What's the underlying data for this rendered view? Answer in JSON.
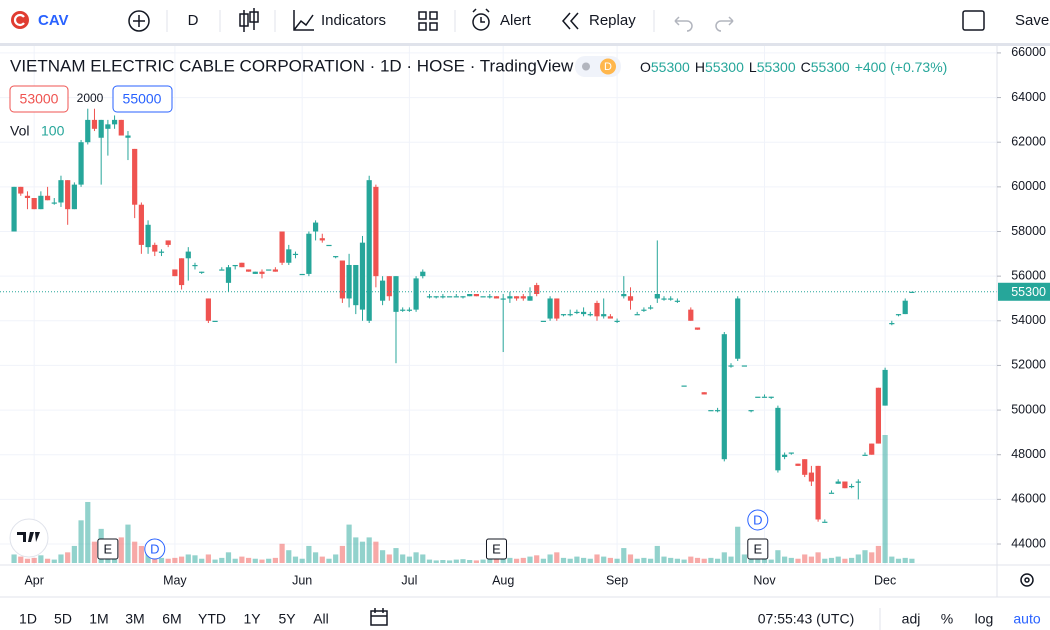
{
  "toolbar": {
    "symbol": "CAV",
    "interval": "D",
    "indicators": "Indicators",
    "alert": "Alert",
    "replay": "Replay",
    "save": "Save"
  },
  "bottom_bar": {
    "ranges": [
      "1D",
      "5D",
      "1M",
      "3M",
      "6M",
      "YTD",
      "1Y",
      "5Y",
      "All"
    ],
    "time": "07:55:43 (UTC)",
    "adj": "adj",
    "percent": "%",
    "log": "log",
    "auto": "auto"
  },
  "chart_data": {
    "type": "candlestick",
    "title": "VIETNAM ELECTRIC CABLE CORPORATION · 1D · HOSE · TradingView",
    "status": "D",
    "legend": [
      {
        "label": "O",
        "value": 55300
      },
      {
        "label": "H",
        "value": 55300
      },
      {
        "label": "L",
        "value": 55300
      },
      {
        "label": "C",
        "value": 55300
      }
    ],
    "change": "+400 (+0.73%)",
    "sell": 53000,
    "spread": 2000,
    "buy": 55000,
    "volume_label": "Vol",
    "up_color": "#26a69a",
    "down_color": "#ef5350",
    "ylim": [
      43060,
      66310
    ],
    "yticks": [
      44000,
      46000,
      48000,
      50000,
      52000,
      54000,
      56000,
      58000,
      60000,
      62000,
      64000,
      66000
    ],
    "xlim": [
      -2.1,
      146.7
    ],
    "xticks": [
      {
        "value": 3,
        "label": "Apr"
      },
      {
        "value": 24,
        "label": "May"
      },
      {
        "value": 43,
        "label": "Jun"
      },
      {
        "value": 59,
        "label": "Jul"
      },
      {
        "value": 73,
        "label": "Aug"
      },
      {
        "value": 90,
        "label": "Sep"
      },
      {
        "value": 112,
        "label": "Nov"
      },
      {
        "value": 130,
        "label": "Dec"
      }
    ],
    "grid": true,
    "events": [
      {
        "label": "E",
        "at": 14
      },
      {
        "label": "D",
        "at": 21
      },
      {
        "label": "E",
        "at": 72
      },
      {
        "label": "E",
        "at": 111
      },
      {
        "label": "D",
        "at": 111
      }
    ],
    "candles": [
      {
        "o": 58000,
        "h": 60000,
        "l": 58000,
        "c": 60000,
        "v": 200
      },
      {
        "o": 60000,
        "h": 60000,
        "l": 59600,
        "c": 59700,
        "v": 150
      },
      {
        "o": 59600,
        "h": 59800,
        "l": 59000,
        "c": 59500,
        "v": 100
      },
      {
        "o": 59500,
        "h": 59500,
        "l": 59000,
        "c": 59000,
        "v": 120
      },
      {
        "o": 59000,
        "h": 59800,
        "l": 59000,
        "c": 59600,
        "v": 180
      },
      {
        "o": 59600,
        "h": 60000,
        "l": 59400,
        "c": 59400,
        "v": 100
      },
      {
        "o": 59300,
        "h": 59500,
        "l": 59200,
        "c": 59300,
        "v": 80
      },
      {
        "o": 59300,
        "h": 60500,
        "l": 59100,
        "c": 60300,
        "v": 200
      },
      {
        "o": 60300,
        "h": 60300,
        "l": 58300,
        "c": 59000,
        "v": 250
      },
      {
        "o": 59000,
        "h": 60200,
        "l": 59000,
        "c": 60100,
        "v": 400
      },
      {
        "o": 60100,
        "h": 62100,
        "l": 60000,
        "c": 62000,
        "v": 1000
      },
      {
        "o": 62000,
        "h": 63500,
        "l": 61900,
        "c": 63000,
        "v": 1430
      },
      {
        "o": 63000,
        "h": 63500,
        "l": 62500,
        "c": 62600,
        "v": 500
      },
      {
        "o": 62200,
        "h": 63000,
        "l": 60100,
        "c": 63000,
        "v": 800
      },
      {
        "o": 62600,
        "h": 63000,
        "l": 61400,
        "c": 62800,
        "v": 450
      },
      {
        "o": 62800,
        "h": 63200,
        "l": 62600,
        "c": 63000,
        "v": 350
      },
      {
        "o": 63000,
        "h": 63000,
        "l": 62400,
        "c": 62300,
        "v": 600
      },
      {
        "o": 62200,
        "h": 62500,
        "l": 61200,
        "c": 62300,
        "v": 900
      },
      {
        "o": 61700,
        "h": 61700,
        "l": 58600,
        "c": 59200,
        "v": 500
      },
      {
        "o": 59200,
        "h": 59300,
        "l": 57000,
        "c": 57400,
        "v": 400
      },
      {
        "o": 57300,
        "h": 58500,
        "l": 57000,
        "c": 58300,
        "v": 250
      },
      {
        "o": 57400,
        "h": 57500,
        "l": 56900,
        "c": 57100,
        "v": 150
      },
      {
        "o": 57100,
        "h": 57200,
        "l": 56900,
        "c": 57100,
        "v": 120
      },
      {
        "o": 57600,
        "h": 57600,
        "l": 57300,
        "c": 57400,
        "v": 100
      },
      {
        "o": 56300,
        "h": 56300,
        "l": 56000,
        "c": 56000,
        "v": 120
      },
      {
        "o": 56800,
        "h": 56800,
        "l": 55400,
        "c": 55600,
        "v": 150
      },
      {
        "o": 56800,
        "h": 57300,
        "l": 55800,
        "c": 57100,
        "v": 200
      },
      {
        "o": 56500,
        "h": 56600,
        "l": 56300,
        "c": 56500,
        "v": 180
      },
      {
        "o": 56200,
        "h": 56200,
        "l": 56100,
        "c": 56200,
        "v": 100
      },
      {
        "o": 55000,
        "h": 55000,
        "l": 53900,
        "c": 54000,
        "v": 200
      },
      {
        "o": 54000,
        "h": 54000,
        "l": 54000,
        "c": 54000,
        "v": 80
      },
      {
        "o": 56300,
        "h": 56400,
        "l": 56300,
        "c": 56300,
        "v": 120
      },
      {
        "o": 55700,
        "h": 56500,
        "l": 55300,
        "c": 56400,
        "v": 250
      },
      {
        "o": 56500,
        "h": 56500,
        "l": 56300,
        "c": 56500,
        "v": 100
      },
      {
        "o": 56600,
        "h": 56600,
        "l": 56400,
        "c": 56400,
        "v": 150
      },
      {
        "o": 56300,
        "h": 56300,
        "l": 56200,
        "c": 56200,
        "v": 120
      },
      {
        "o": 56100,
        "h": 56200,
        "l": 56100,
        "c": 56200,
        "v": 100
      },
      {
        "o": 56200,
        "h": 56300,
        "l": 55900,
        "c": 56100,
        "v": 80
      },
      {
        "o": 56300,
        "h": 56300,
        "l": 56300,
        "c": 56300,
        "v": 100
      },
      {
        "o": 56300,
        "h": 56400,
        "l": 56200,
        "c": 56200,
        "v": 120
      },
      {
        "o": 58000,
        "h": 58000,
        "l": 56500,
        "c": 56600,
        "v": 450
      },
      {
        "o": 56600,
        "h": 57400,
        "l": 56500,
        "c": 57200,
        "v": 300
      },
      {
        "o": 57000,
        "h": 57100,
        "l": 56800,
        "c": 57000,
        "v": 150
      },
      {
        "o": 56100,
        "h": 56100,
        "l": 56100,
        "c": 56100,
        "v": 100
      },
      {
        "o": 56100,
        "h": 58000,
        "l": 56000,
        "c": 57900,
        "v": 400
      },
      {
        "o": 58000,
        "h": 58500,
        "l": 57600,
        "c": 58400,
        "v": 250
      },
      {
        "o": 57700,
        "h": 57900,
        "l": 57500,
        "c": 57600,
        "v": 150
      },
      {
        "o": 57400,
        "h": 57400,
        "l": 57400,
        "c": 57400,
        "v": 100
      },
      {
        "o": 56900,
        "h": 56900,
        "l": 56800,
        "c": 56900,
        "v": 200
      },
      {
        "o": 56700,
        "h": 56700,
        "l": 54800,
        "c": 55000,
        "v": 400
      },
      {
        "o": 55000,
        "h": 57000,
        "l": 54600,
        "c": 56500,
        "v": 900
      },
      {
        "o": 54700,
        "h": 56500,
        "l": 54300,
        "c": 56500,
        "v": 600
      },
      {
        "o": 54500,
        "h": 57800,
        "l": 54000,
        "c": 57500,
        "v": 500
      },
      {
        "o": 54000,
        "h": 60500,
        "l": 53900,
        "c": 60300,
        "v": 600
      },
      {
        "o": 60000,
        "h": 60100,
        "l": 55500,
        "c": 56000,
        "v": 500
      },
      {
        "o": 54900,
        "h": 56000,
        "l": 54700,
        "c": 55800,
        "v": 300
      },
      {
        "o": 56000,
        "h": 56000,
        "l": 54900,
        "c": 55100,
        "v": 200
      },
      {
        "o": 54400,
        "h": 56000,
        "l": 52100,
        "c": 56000,
        "v": 350
      },
      {
        "o": 54500,
        "h": 54600,
        "l": 54400,
        "c": 54500,
        "v": 200
      },
      {
        "o": 54500,
        "h": 54600,
        "l": 54400,
        "c": 54500,
        "v": 150
      },
      {
        "o": 54500,
        "h": 56000,
        "l": 54400,
        "c": 55900,
        "v": 250
      },
      {
        "o": 56000,
        "h": 56300,
        "l": 55900,
        "c": 56200,
        "v": 200
      },
      {
        "o": 55100,
        "h": 55200,
        "l": 55000,
        "c": 55100,
        "v": 80
      },
      {
        "o": 55100,
        "h": 55100,
        "l": 55000,
        "c": 55100,
        "v": 60
      },
      {
        "o": 55100,
        "h": 55200,
        "l": 55000,
        "c": 55100,
        "v": 70
      },
      {
        "o": 55100,
        "h": 55100,
        "l": 55100,
        "c": 55100,
        "v": 60
      },
      {
        "o": 55100,
        "h": 55200,
        "l": 55100,
        "c": 55100,
        "v": 80
      },
      {
        "o": 55100,
        "h": 55100,
        "l": 55000,
        "c": 55100,
        "v": 90
      },
      {
        "o": 55100,
        "h": 55200,
        "l": 55100,
        "c": 55200,
        "v": 70
      },
      {
        "o": 55200,
        "h": 55200,
        "l": 55100,
        "c": 55100,
        "v": 60
      },
      {
        "o": 55100,
        "h": 55100,
        "l": 55100,
        "c": 55100,
        "v": 80
      },
      {
        "o": 55100,
        "h": 55200,
        "l": 55000,
        "c": 55100,
        "v": 100
      },
      {
        "o": 55100,
        "h": 55100,
        "l": 55000,
        "c": 55000,
        "v": 90
      },
      {
        "o": 55000,
        "h": 55200,
        "l": 52600,
        "c": 55000,
        "v": 150
      },
      {
        "o": 55000,
        "h": 55300,
        "l": 54800,
        "c": 55100,
        "v": 120
      },
      {
        "o": 55100,
        "h": 55100,
        "l": 54900,
        "c": 55000,
        "v": 100
      },
      {
        "o": 55100,
        "h": 55200,
        "l": 54900,
        "c": 55000,
        "v": 120
      },
      {
        "o": 54900,
        "h": 55500,
        "l": 54900,
        "c": 55100,
        "v": 150
      },
      {
        "o": 55600,
        "h": 55700,
        "l": 55100,
        "c": 55200,
        "v": 180
      },
      {
        "o": 54000,
        "h": 54000,
        "l": 54000,
        "c": 54000,
        "v": 100
      },
      {
        "o": 54100,
        "h": 55100,
        "l": 54000,
        "c": 55000,
        "v": 200
      },
      {
        "o": 55000,
        "h": 55000,
        "l": 54000,
        "c": 54100,
        "v": 250
      },
      {
        "o": 54300,
        "h": 54300,
        "l": 54200,
        "c": 54300,
        "v": 120
      },
      {
        "o": 54300,
        "h": 54500,
        "l": 54200,
        "c": 54300,
        "v": 100
      },
      {
        "o": 54400,
        "h": 54500,
        "l": 54300,
        "c": 54400,
        "v": 150
      },
      {
        "o": 54300,
        "h": 54600,
        "l": 54200,
        "c": 54400,
        "v": 120
      },
      {
        "o": 54300,
        "h": 54400,
        "l": 54200,
        "c": 54300,
        "v": 100
      },
      {
        "o": 54800,
        "h": 54900,
        "l": 54000,
        "c": 54200,
        "v": 200
      },
      {
        "o": 54200,
        "h": 55000,
        "l": 54100,
        "c": 54300,
        "v": 150
      },
      {
        "o": 54200,
        "h": 54300,
        "l": 54100,
        "c": 54100,
        "v": 120
      },
      {
        "o": 54000,
        "h": 54100,
        "l": 53900,
        "c": 54000,
        "v": 100
      },
      {
        "o": 55100,
        "h": 56000,
        "l": 55000,
        "c": 55200,
        "v": 350
      },
      {
        "o": 55100,
        "h": 55500,
        "l": 54500,
        "c": 54900,
        "v": 200
      },
      {
        "o": 54300,
        "h": 54400,
        "l": 54300,
        "c": 54300,
        "v": 100
      },
      {
        "o": 54500,
        "h": 54600,
        "l": 54400,
        "c": 54500,
        "v": 120
      },
      {
        "o": 54600,
        "h": 54700,
        "l": 54500,
        "c": 54600,
        "v": 100
      },
      {
        "o": 55000,
        "h": 57600,
        "l": 54800,
        "c": 55200,
        "v": 400
      },
      {
        "o": 55000,
        "h": 55100,
        "l": 54900,
        "c": 55000,
        "v": 150
      },
      {
        "o": 55000,
        "h": 55100,
        "l": 54900,
        "c": 55000,
        "v": 120
      },
      {
        "o": 54900,
        "h": 55000,
        "l": 54800,
        "c": 54900,
        "v": 100
      },
      {
        "o": 51100,
        "h": 51100,
        "l": 51100,
        "c": 51100,
        "v": 80
      },
      {
        "o": 54500,
        "h": 54600,
        "l": 54000,
        "c": 54000,
        "v": 150
      },
      {
        "o": 53700,
        "h": 53700,
        "l": 53600,
        "c": 53600,
        "v": 120
      },
      {
        "o": 50800,
        "h": 50800,
        "l": 50700,
        "c": 50700,
        "v": 100
      },
      {
        "o": 50000,
        "h": 50000,
        "l": 50000,
        "c": 50000,
        "v": 120
      },
      {
        "o": 50000,
        "h": 50100,
        "l": 49900,
        "c": 50000,
        "v": 100
      },
      {
        "o": 47800,
        "h": 53500,
        "l": 47700,
        "c": 53400,
        "v": 250
      },
      {
        "o": 52000,
        "h": 52100,
        "l": 51900,
        "c": 52000,
        "v": 150
      },
      {
        "o": 52300,
        "h": 55100,
        "l": 52200,
        "c": 55000,
        "v": 850
      },
      {
        "o": 52000,
        "h": 52000,
        "l": 52000,
        "c": 52000,
        "v": 200
      },
      {
        "o": 50000,
        "h": 50000,
        "l": 49900,
        "c": 50000,
        "v": 100
      },
      {
        "o": 50600,
        "h": 50600,
        "l": 50600,
        "c": 50600,
        "v": 80
      },
      {
        "o": 50600,
        "h": 50700,
        "l": 50600,
        "c": 50600,
        "v": 100
      },
      {
        "o": 50600,
        "h": 50600,
        "l": 50500,
        "c": 50600,
        "v": 80
      },
      {
        "o": 47300,
        "h": 50200,
        "l": 47200,
        "c": 50100,
        "v": 300
      },
      {
        "o": 47900,
        "h": 48100,
        "l": 47800,
        "c": 48000,
        "v": 150
      },
      {
        "o": 48100,
        "h": 48100,
        "l": 48000,
        "c": 48100,
        "v": 120
      },
      {
        "o": 47600,
        "h": 47600,
        "l": 47500,
        "c": 47500,
        "v": 100
      },
      {
        "o": 47800,
        "h": 47800,
        "l": 47000,
        "c": 47100,
        "v": 200
      },
      {
        "o": 47200,
        "h": 47500,
        "l": 46600,
        "c": 46800,
        "v": 150
      },
      {
        "o": 47500,
        "h": 47500,
        "l": 45000,
        "c": 45100,
        "v": 250
      },
      {
        "o": 45000,
        "h": 45100,
        "l": 45000,
        "c": 45000,
        "v": 100
      },
      {
        "o": 46300,
        "h": 46400,
        "l": 46300,
        "c": 46300,
        "v": 120
      },
      {
        "o": 46700,
        "h": 46900,
        "l": 46700,
        "c": 46800,
        "v": 150
      },
      {
        "o": 46800,
        "h": 46800,
        "l": 46500,
        "c": 46500,
        "v": 100
      },
      {
        "o": 46600,
        "h": 46700,
        "l": 46500,
        "c": 46600,
        "v": 120
      },
      {
        "o": 46800,
        "h": 46900,
        "l": 46000,
        "c": 46800,
        "v": 200
      },
      {
        "o": 48000,
        "h": 48100,
        "l": 48000,
        "c": 48000,
        "v": 300
      },
      {
        "o": 48500,
        "h": 48500,
        "l": 48000,
        "c": 48000,
        "v": 250
      },
      {
        "o": 51000,
        "h": 51000,
        "l": 48500,
        "c": 48500,
        "v": 400
      },
      {
        "o": 50200,
        "h": 51900,
        "l": 50200,
        "c": 51800,
        "v": 3000
      },
      {
        "o": 53900,
        "h": 54000,
        "l": 53800,
        "c": 53900,
        "v": 150
      },
      {
        "o": 54300,
        "h": 54300,
        "l": 54200,
        "c": 54300,
        "v": 100
      },
      {
        "o": 54300,
        "h": 55000,
        "l": 54300,
        "c": 54900,
        "v": 120
      },
      {
        "o": 55300,
        "h": 55300,
        "l": 55300,
        "c": 55300,
        "v": 100
      }
    ]
  }
}
